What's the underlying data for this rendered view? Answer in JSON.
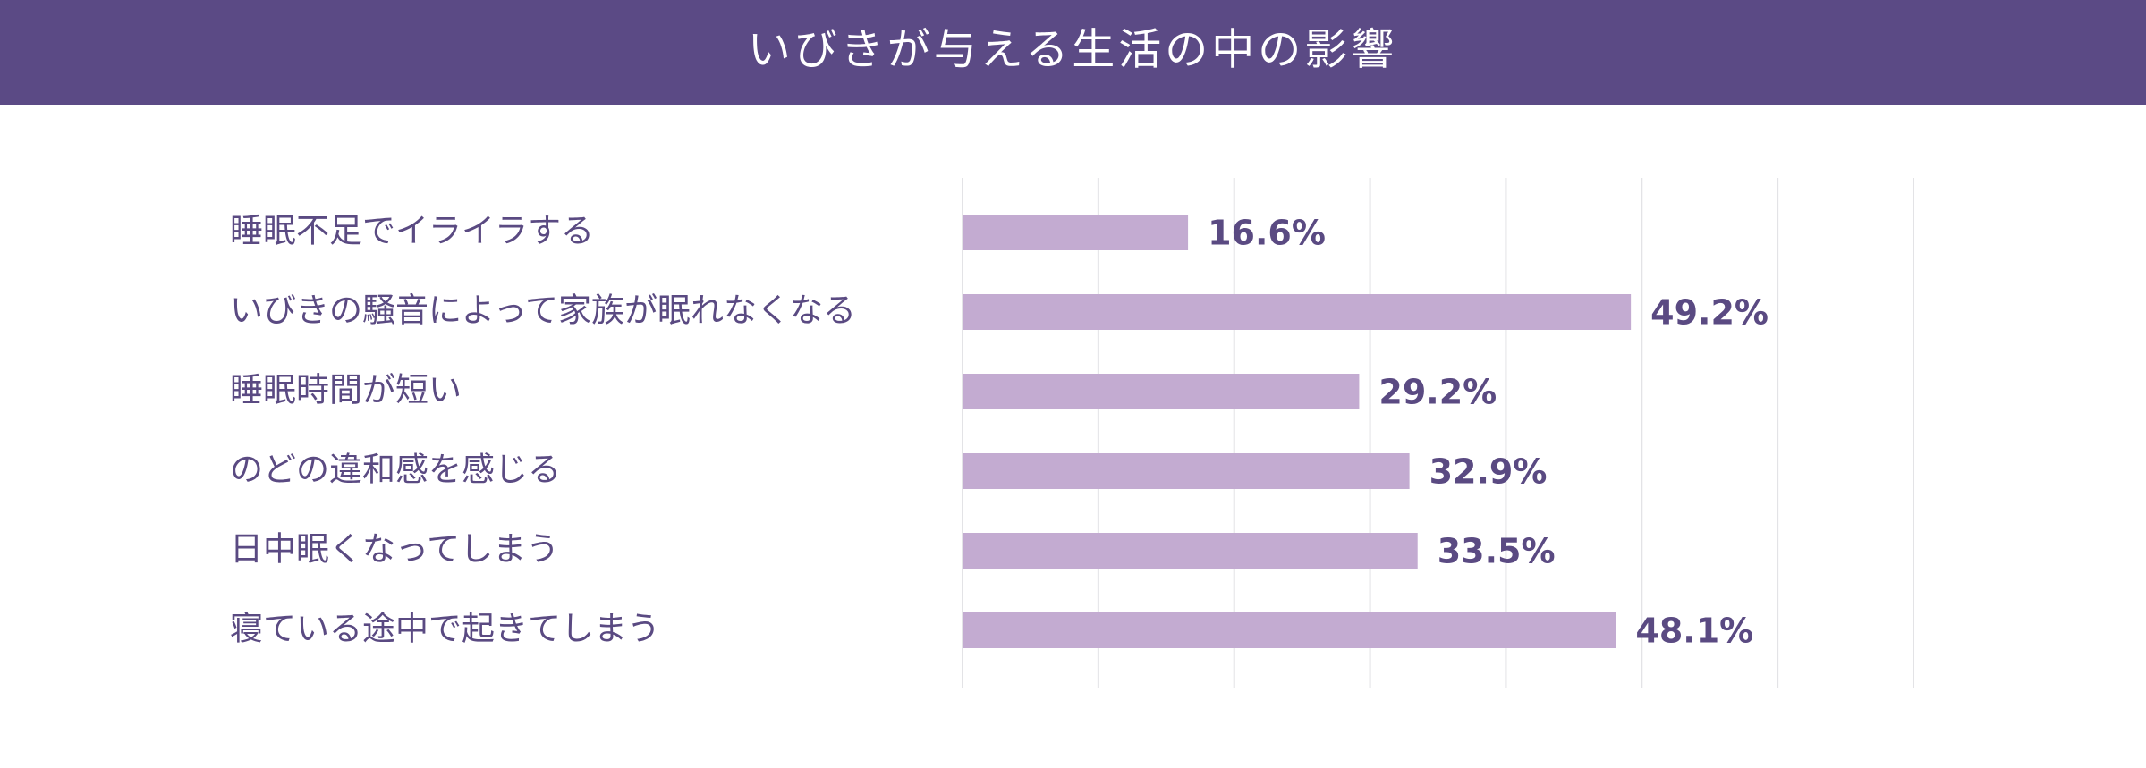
{
  "chart_data": {
    "type": "bar",
    "orientation": "horizontal",
    "title": "いびきが与える生活の中の影響",
    "categories": [
      "睡眠不足でイライラする",
      "いびきの騒音によって家族が眠れなくなる",
      "睡眠時間が短い",
      "のどの違和感を感じる",
      "日中眠くなってしまう",
      "寝ている途中で起きてしまう"
    ],
    "values": [
      16.6,
      49.2,
      29.2,
      32.9,
      33.5,
      48.1
    ],
    "value_labels": [
      "16.6%",
      "49.2%",
      "29.2%",
      "32.9%",
      "33.5%",
      "48.1%"
    ],
    "color": "#c3abd1",
    "xlim": [
      0,
      70
    ],
    "xticks": [
      0,
      10,
      20,
      30,
      40,
      50,
      60,
      70
    ],
    "grid": true
  }
}
